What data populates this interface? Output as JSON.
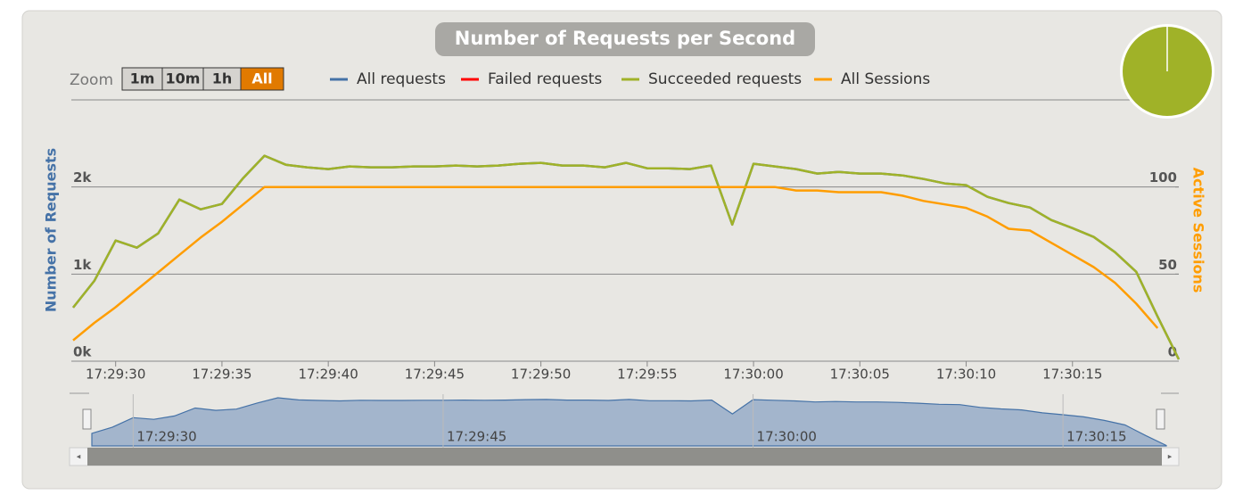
{
  "chart_data": {
    "type": "line",
    "title": "Number of Requests per Second",
    "y_label": "Number of Requests",
    "y2_label": "Active Sessions",
    "x": [
      "17:29:28",
      "17:29:29",
      "17:29:30",
      "17:29:31",
      "17:29:32",
      "17:29:33",
      "17:29:34",
      "17:29:35",
      "17:29:36",
      "17:29:37",
      "17:29:38",
      "17:29:39",
      "17:29:40",
      "17:29:41",
      "17:29:42",
      "17:29:43",
      "17:29:44",
      "17:29:45",
      "17:29:46",
      "17:29:47",
      "17:29:48",
      "17:29:49",
      "17:29:50",
      "17:29:51",
      "17:29:52",
      "17:29:53",
      "17:29:54",
      "17:29:55",
      "17:29:56",
      "17:29:57",
      "17:29:58",
      "17:29:59",
      "17:30:00",
      "17:30:01",
      "17:30:02",
      "17:30:03",
      "17:30:04",
      "17:30:05",
      "17:30:06",
      "17:30:07",
      "17:30:08",
      "17:30:09",
      "17:30:10",
      "17:30:11",
      "17:30:12",
      "17:30:13",
      "17:30:14",
      "17:30:15",
      "17:30:16",
      "17:30:17",
      "17:30:18",
      "17:30:19",
      "17:30:20"
    ],
    "xlim": [
      "17:29:28",
      "17:30:20"
    ],
    "xticks": [
      "17:29:30",
      "17:29:35",
      "17:29:40",
      "17:29:45",
      "17:29:50",
      "17:29:55",
      "17:30:00",
      "17:30:05",
      "17:30:10",
      "17:30:15"
    ],
    "ylim": [
      0,
      3000
    ],
    "yticks": [
      {
        "value": 0,
        "label": "0k"
      },
      {
        "value": 1000,
        "label": "1k"
      },
      {
        "value": 2000,
        "label": "2k"
      }
    ],
    "y2lim": [
      0,
      150
    ],
    "y2ticks": [
      0,
      50,
      100
    ],
    "grid": true,
    "series": [
      {
        "name": "All requests",
        "color": "#4572a7",
        "values": [
          615,
          923,
          1385,
          1303,
          1467,
          1856,
          1744,
          1805,
          2103,
          2359,
          2256,
          2226,
          2205,
          2236,
          2226,
          2226,
          2236,
          2236,
          2246,
          2236,
          2246,
          2267,
          2277,
          2246,
          2246,
          2226,
          2277,
          2215,
          2215,
          2205,
          2246,
          1569,
          2267,
          2236,
          2205,
          2154,
          2174,
          2154,
          2154,
          2133,
          2092,
          2041,
          2021,
          1887,
          1815,
          1764,
          1621,
          1528,
          1426,
          1251,
          1026,
          513,
          21
        ]
      },
      {
        "name": "Failed requests",
        "color": "#ff0000",
        "values": [
          null,
          null,
          null,
          null,
          null,
          null,
          null,
          null,
          null,
          null,
          null,
          null,
          null,
          null,
          null,
          null,
          null,
          null,
          null,
          null,
          null,
          null,
          null,
          null,
          null,
          null,
          null,
          null,
          null,
          null,
          null,
          null,
          null,
          null,
          null,
          null,
          null,
          null,
          null,
          null,
          null,
          null,
          null,
          null,
          null,
          null,
          null,
          null,
          null,
          null,
          null,
          null,
          null
        ]
      },
      {
        "name": "Succeeded requests",
        "color": "#a0b228",
        "values": [
          615,
          923,
          1385,
          1303,
          1467,
          1856,
          1744,
          1805,
          2103,
          2359,
          2256,
          2226,
          2205,
          2236,
          2226,
          2226,
          2236,
          2236,
          2246,
          2236,
          2246,
          2267,
          2277,
          2246,
          2246,
          2226,
          2277,
          2215,
          2215,
          2205,
          2246,
          1569,
          2267,
          2236,
          2205,
          2154,
          2174,
          2154,
          2154,
          2133,
          2092,
          2041,
          2021,
          1887,
          1815,
          1764,
          1621,
          1528,
          1426,
          1251,
          1026,
          513,
          21
        ]
      },
      {
        "name": "All Sessions",
        "color": "#ff9d00",
        "axis": "y2",
        "values": [
          12,
          22,
          31,
          41,
          51,
          61,
          71,
          80,
          90,
          100,
          100,
          100,
          100,
          100,
          100,
          100,
          100,
          100,
          100,
          100,
          100,
          100,
          100,
          100,
          100,
          100,
          100,
          100,
          100,
          100,
          100,
          100,
          100,
          100,
          98,
          98,
          97,
          97,
          97,
          95,
          92,
          90,
          88,
          83,
          76,
          75,
          68,
          61,
          54,
          45,
          33,
          19,
          null
        ]
      }
    ],
    "navigator": {
      "xticks": [
        "17:29:30",
        "17:29:45",
        "17:30:00",
        "17:30:15"
      ]
    },
    "zoom": {
      "label": "Zoom",
      "buttons": [
        "1m",
        "10m",
        "1h",
        "All"
      ],
      "selected": 3
    }
  }
}
